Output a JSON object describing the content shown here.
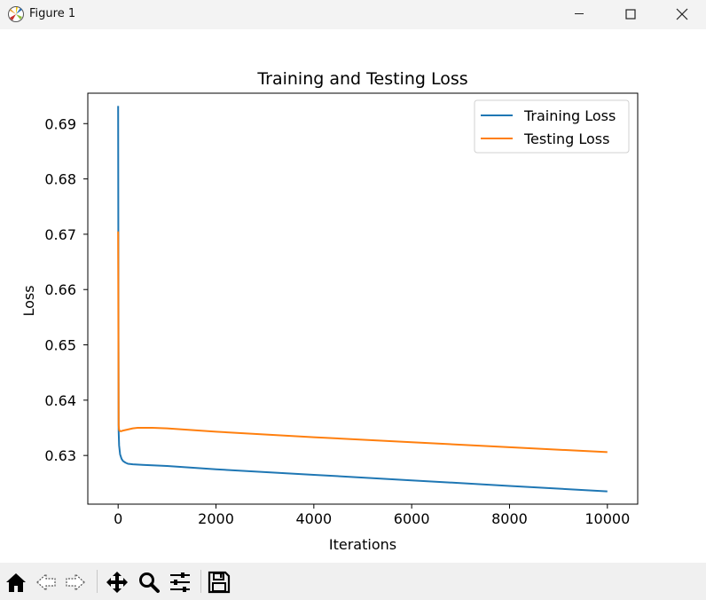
{
  "window": {
    "title": "Figure 1",
    "icon": "matplotlib-icon",
    "controls": [
      "minimize-icon",
      "maximize-icon",
      "close-icon"
    ]
  },
  "toolbar": {
    "tools": [
      "home-icon",
      "back-arrow-icon",
      "forward-arrow-icon",
      "pan-icon",
      "zoom-icon",
      "configure-subplots-icon",
      "save-icon"
    ]
  },
  "chart_data": {
    "type": "line",
    "title": "Training and Testing Loss",
    "xlabel": "Iterations",
    "ylabel": "Loss",
    "xlim": [
      -620,
      10620
    ],
    "ylim": [
      0.6212,
      0.6955
    ],
    "xticks": [
      0,
      2000,
      4000,
      6000,
      8000,
      10000
    ],
    "xtick_labels": [
      "0",
      "2000",
      "4000",
      "6000",
      "8000",
      "10000"
    ],
    "yticks": [
      0.63,
      0.64,
      0.65,
      0.66,
      0.67,
      0.68,
      0.69
    ],
    "ytick_labels": [
      "0.63",
      "0.64",
      "0.65",
      "0.66",
      "0.67",
      "0.68",
      "0.69"
    ],
    "grid": false,
    "legend_position": "upper right",
    "series": [
      {
        "name": "Training Loss",
        "color": "#1f77b4",
        "x": [
          0,
          10,
          20,
          40,
          70,
          100,
          150,
          200,
          300,
          500,
          1000,
          2000,
          4000,
          6000,
          8000,
          10000
        ],
        "y": [
          0.6932,
          0.6345,
          0.6318,
          0.6302,
          0.6294,
          0.629,
          0.6287,
          0.6285,
          0.6284,
          0.6283,
          0.6281,
          0.6275,
          0.6265,
          0.6255,
          0.6245,
          0.6235
        ]
      },
      {
        "name": "Testing Loss",
        "color": "#ff7f0e",
        "x": [
          0,
          10,
          20,
          40,
          70,
          100,
          150,
          200,
          300,
          400,
          500,
          700,
          1000,
          2000,
          4000,
          6000,
          8000,
          10000
        ],
        "y": [
          0.6705,
          0.6355,
          0.6346,
          0.6344,
          0.6344,
          0.6345,
          0.6346,
          0.6347,
          0.6349,
          0.635,
          0.635,
          0.635,
          0.6349,
          0.6343,
          0.6333,
          0.6324,
          0.6315,
          0.6306
        ]
      }
    ]
  }
}
